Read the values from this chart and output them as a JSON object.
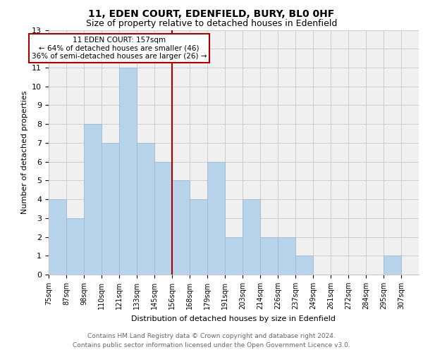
{
  "title1": "11, EDEN COURT, EDENFIELD, BURY, BL0 0HF",
  "title2": "Size of property relative to detached houses in Edenfield",
  "xlabel": "Distribution of detached houses by size in Edenfield",
  "ylabel": "Number of detached properties",
  "bins": [
    "75sqm",
    "87sqm",
    "98sqm",
    "110sqm",
    "121sqm",
    "133sqm",
    "145sqm",
    "156sqm",
    "168sqm",
    "179sqm",
    "191sqm",
    "203sqm",
    "214sqm",
    "226sqm",
    "237sqm",
    "249sqm",
    "261sqm",
    "272sqm",
    "284sqm",
    "295sqm",
    "307sqm"
  ],
  "counts": [
    4,
    3,
    8,
    7,
    11,
    7,
    6,
    5,
    4,
    6,
    2,
    4,
    2,
    2,
    1,
    0,
    0,
    0,
    0,
    1,
    0
  ],
  "bar_color": "#b8d4ea",
  "bar_edge_color": "#a0b8d0",
  "highlight_bin": 7,
  "vline_color": "#aa0000",
  "annotation_line1": "11 EDEN COURT: 157sqm",
  "annotation_line2": "← 64% of detached houses are smaller (46)",
  "annotation_line3": "36% of semi-detached houses are larger (26) →",
  "annotation_box_edgecolor": "#aa0000",
  "annotation_box_facecolor": "#ffffff",
  "ylim": [
    0,
    13
  ],
  "yticks": [
    0,
    1,
    2,
    3,
    4,
    5,
    6,
    7,
    8,
    9,
    10,
    11,
    12,
    13
  ],
  "footer1": "Contains HM Land Registry data © Crown copyright and database right 2024.",
  "footer2": "Contains public sector information licensed under the Open Government Licence v3.0.",
  "grid_color": "#c8c8c8",
  "background_color": "#f0f0f0",
  "title1_fontsize": 10,
  "title2_fontsize": 9,
  "ylabel_fontsize": 8,
  "xlabel_fontsize": 8,
  "tick_fontsize": 7,
  "footer_fontsize": 6.5
}
